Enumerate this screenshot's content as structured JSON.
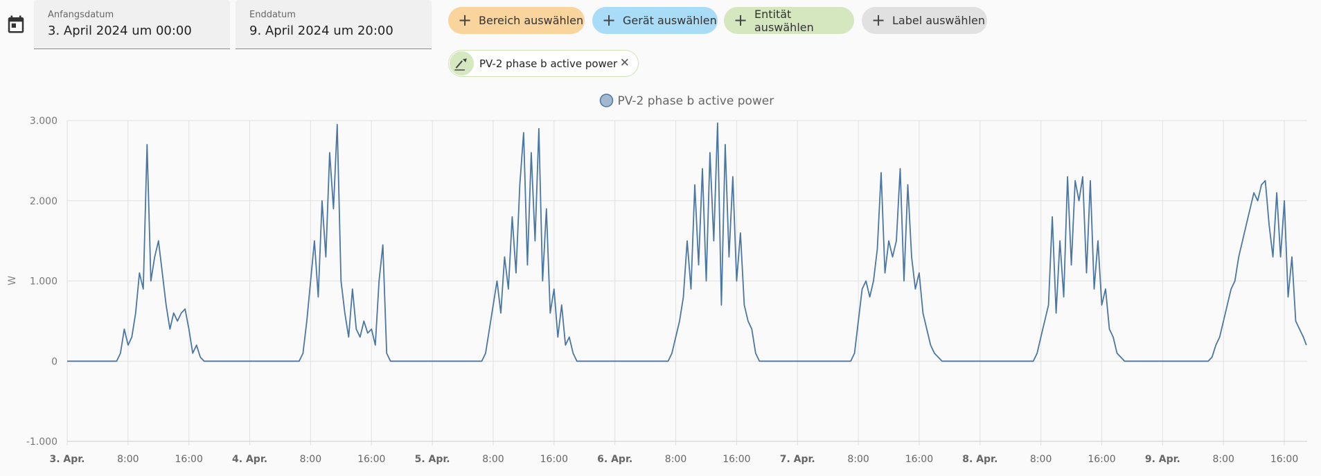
{
  "controls": {
    "start": {
      "label": "Anfangsdatum",
      "value": "3. April 2024 um 00:00"
    },
    "end": {
      "label": "Enddatum",
      "value": "9. April 2024 um 20:00"
    },
    "chips": [
      "Bereich auswählen",
      "Gerät auswählen",
      "Entität auswählen",
      "Label auswählen"
    ],
    "selected": "PV-2 phase b active power"
  },
  "chart_data": {
    "type": "line",
    "y_label": "W",
    "grid": true,
    "legend": "top",
    "xlim": [
      0,
      163
    ],
    "ylim": [
      -1000,
      3000
    ],
    "yticks": [
      {
        "value": -1000,
        "label": "-1.000"
      },
      0,
      {
        "value": 1000,
        "label": "1.000"
      },
      {
        "value": 2000,
        "label": "2.000"
      },
      {
        "value": 3000,
        "label": "3.000"
      }
    ],
    "xticks": [
      {
        "value": 0,
        "label": "3. Apr."
      },
      {
        "value": 8,
        "label": "8:00"
      },
      {
        "value": 16,
        "label": "16:00"
      },
      {
        "value": 24,
        "label": "4. Apr."
      },
      {
        "value": 32,
        "label": "8:00"
      },
      {
        "value": 40,
        "label": "16:00"
      },
      {
        "value": 48,
        "label": "5. Apr."
      },
      {
        "value": 56,
        "label": "8:00"
      },
      {
        "value": 64,
        "label": "16:00"
      },
      {
        "value": 72,
        "label": "6. Apr."
      },
      {
        "value": 80,
        "label": "8:00"
      },
      {
        "value": 88,
        "label": "16:00"
      },
      {
        "value": 96,
        "label": "7. Apr."
      },
      {
        "value": 104,
        "label": "8:00"
      },
      {
        "value": 112,
        "label": "16:00"
      },
      {
        "value": 120,
        "label": "8. Apr."
      },
      {
        "value": 128,
        "label": "8:00"
      },
      {
        "value": 136,
        "label": "16:00"
      },
      {
        "value": 144,
        "label": "9. Apr."
      },
      {
        "value": 152,
        "label": "8:00"
      },
      {
        "value": 160,
        "label": "16:00"
      }
    ],
    "x": [
      0,
      6.5,
      7,
      7.5,
      8,
      8.5,
      9,
      9.5,
      10,
      10.5,
      11,
      11.5,
      12,
      12.5,
      13,
      13.5,
      14,
      14.5,
      15,
      15.5,
      16,
      16.5,
      17,
      17.5,
      18,
      30.5,
      31,
      31.5,
      32,
      32.5,
      33,
      33.5,
      34,
      34.5,
      35,
      35.5,
      36,
      36.5,
      37,
      37.5,
      38,
      38.5,
      39,
      39.5,
      40,
      40.5,
      41,
      41.5,
      42,
      42.5,
      54.5,
      55,
      55.5,
      56,
      56.5,
      57,
      57.5,
      58,
      58.5,
      59,
      59.5,
      60,
      60.5,
      61,
      61.5,
      62,
      62.5,
      63,
      63.5,
      64,
      64.5,
      65,
      65.5,
      66,
      66.5,
      67,
      79,
      79.5,
      80,
      80.5,
      81,
      81.5,
      82,
      82.5,
      83,
      83.5,
      84,
      84.5,
      85,
      85.5,
      86,
      86.5,
      87,
      87.5,
      88,
      88.5,
      89,
      89.5,
      90,
      90.5,
      91,
      103,
      103.5,
      104,
      104.5,
      105,
      105.5,
      106,
      106.5,
      107,
      107.5,
      108,
      108.5,
      109,
      109.5,
      110,
      110.5,
      111,
      111.5,
      112,
      112.5,
      113,
      113.5,
      114,
      114.5,
      115,
      127,
      127.5,
      128,
      128.5,
      129,
      129.5,
      130,
      130.5,
      131,
      131.5,
      132,
      132.5,
      133,
      133.5,
      134,
      134.5,
      135,
      135.5,
      136,
      136.5,
      137,
      137.5,
      138,
      138.5,
      139,
      150,
      150.5,
      151,
      151.5,
      152,
      152.5,
      153,
      153.5,
      154,
      154.5,
      155,
      155.5,
      156,
      156.5,
      157,
      157.5,
      158,
      158.5,
      159,
      159.5,
      160,
      160.5,
      161,
      161.5,
      162,
      162.5,
      162.9
    ],
    "series": [
      {
        "name": "PV-2 phase b active power",
        "color": "#4a76a3",
        "values": [
          0,
          0,
          100,
          400,
          200,
          300,
          600,
          1100,
          900,
          2700,
          1000,
          1300,
          1500,
          1100,
          700,
          400,
          600,
          500,
          600,
          650,
          400,
          100,
          200,
          50,
          0,
          0,
          100,
          500,
          1000,
          1500,
          800,
          2000,
          1300,
          2600,
          1900,
          2950,
          1000,
          600,
          300,
          900,
          400,
          300,
          500,
          350,
          400,
          200,
          1000,
          1450,
          100,
          0,
          0,
          100,
          400,
          700,
          1000,
          600,
          1300,
          900,
          1800,
          1100,
          2200,
          2850,
          1200,
          2600,
          1500,
          2900,
          1000,
          1900,
          600,
          900,
          300,
          700,
          200,
          300,
          100,
          0,
          0,
          100,
          300,
          500,
          800,
          1500,
          900,
          2200,
          1200,
          2400,
          1000,
          2600,
          1500,
          2970,
          700,
          2700,
          1300,
          2300,
          1000,
          1600,
          700,
          500,
          400,
          100,
          0,
          0,
          100,
          500,
          900,
          1000,
          800,
          1000,
          1400,
          2350,
          1100,
          1500,
          1300,
          1500,
          2400,
          1000,
          2200,
          1300,
          900,
          1100,
          600,
          400,
          200,
          100,
          50,
          0,
          0,
          100,
          300,
          500,
          700,
          1800,
          600,
          1500,
          800,
          2300,
          1200,
          2250,
          2000,
          2300,
          1100,
          2250,
          900,
          1500,
          700,
          900,
          400,
          300,
          100,
          50,
          0,
          0,
          50,
          200,
          300,
          500,
          700,
          900,
          1000,
          1300,
          1500,
          1700,
          1900,
          2100,
          2000,
          2200,
          2250,
          1700,
          1300,
          2100,
          1300,
          2000,
          800,
          1300,
          500,
          400,
          300,
          200
        ]
      }
    ]
  }
}
